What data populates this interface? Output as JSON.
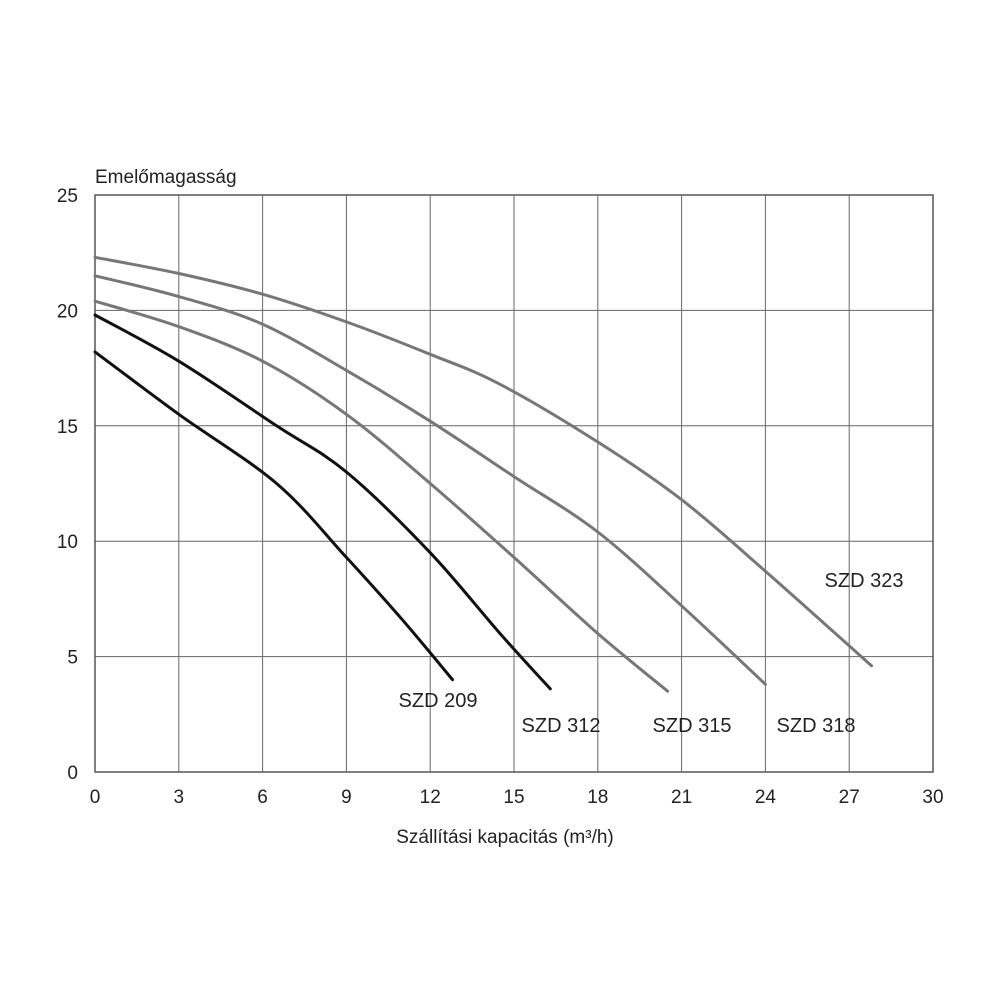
{
  "chart_data": {
    "type": "line",
    "ylabel": "Emelőmagasság",
    "xlabel": "Szállítási kapacitás (m³/h)",
    "xlim": [
      0,
      30
    ],
    "ylim": [
      0,
      25
    ],
    "xticks": [
      0,
      3,
      6,
      9,
      12,
      15,
      18,
      21,
      24,
      27,
      30
    ],
    "yticks": [
      0,
      5,
      10,
      15,
      20,
      25
    ],
    "grid": true,
    "series": [
      {
        "name": "SZD 209",
        "color": "#111111",
        "x": [
          0,
          3,
          6.5,
          9,
          11,
          12.8
        ],
        "y": [
          18.2,
          15.5,
          12.5,
          9.3,
          6.6,
          4.0
        ]
      },
      {
        "name": "SZD 312",
        "color": "#111111",
        "x": [
          0,
          3,
          6.5,
          9,
          12,
          14.5,
          16.3
        ],
        "y": [
          19.8,
          17.8,
          15.0,
          13.0,
          9.5,
          6.0,
          3.6
        ]
      },
      {
        "name": "SZD 315",
        "color": "#777777",
        "x": [
          0,
          3,
          6,
          9,
          12,
          15,
          18,
          20.5
        ],
        "y": [
          20.4,
          19.3,
          17.8,
          15.5,
          12.5,
          9.3,
          6.0,
          3.5
        ]
      },
      {
        "name": "SZD 318",
        "color": "#777777",
        "x": [
          0,
          3,
          6,
          9,
          12,
          15,
          18,
          21,
          24
        ],
        "y": [
          21.5,
          20.6,
          19.4,
          17.4,
          15.2,
          12.8,
          10.4,
          7.2,
          3.8
        ]
      },
      {
        "name": "SZD 323",
        "color": "#777777",
        "x": [
          0,
          3,
          6,
          9,
          12,
          14.5,
          18,
          21,
          24,
          27.8
        ],
        "y": [
          22.3,
          21.6,
          20.7,
          19.5,
          18.1,
          16.8,
          14.3,
          11.8,
          8.7,
          4.6
        ]
      }
    ]
  }
}
